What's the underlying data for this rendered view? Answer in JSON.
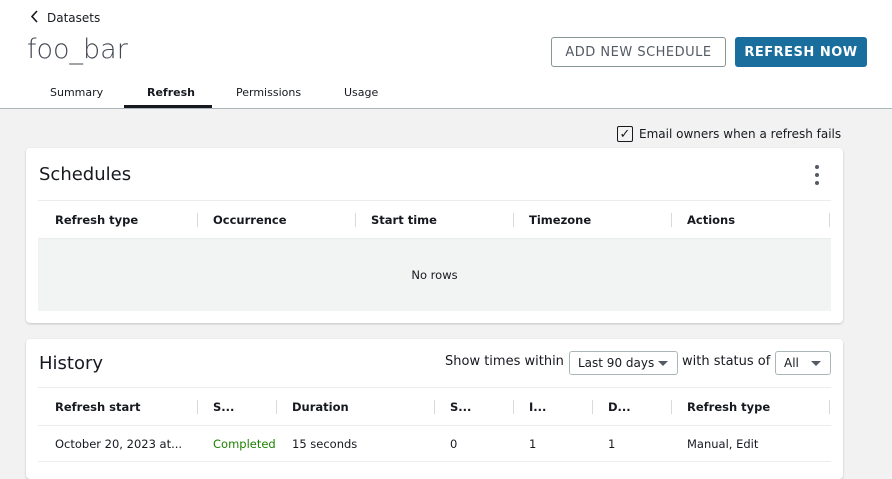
{
  "breadcrumb": {
    "label": "Datasets"
  },
  "title": "foo_bar",
  "buttons": {
    "add_schedule": "ADD NEW SCHEDULE",
    "refresh_now": "REFRESH NOW"
  },
  "tabs": [
    {
      "label": "Summary"
    },
    {
      "label": "Refresh",
      "active": true
    },
    {
      "label": "Permissions"
    },
    {
      "label": "Usage"
    }
  ],
  "email_option": {
    "label": "Email owners when a refresh fails",
    "checked": true
  },
  "schedules": {
    "title": "Schedules",
    "columns": [
      "Refresh type",
      "Occurrence",
      "Start time",
      "Timezone",
      "Actions"
    ],
    "empty_text": "No rows"
  },
  "history": {
    "title": "History",
    "filter_prefix": "Show times within",
    "range": "Last 90 days",
    "status_prefix": "with status of",
    "status": "All",
    "columns": [
      "Refresh start",
      "S...",
      "Duration",
      "S...",
      "I...",
      "D...",
      "Refresh type"
    ],
    "rows": [
      [
        "October 20, 2023 at...",
        "Completed",
        "15 seconds",
        "0",
        "1",
        "1",
        "Manual, Edit"
      ]
    ]
  },
  "colors": {
    "primary": "#1a6e9e",
    "success": "#1d8102"
  }
}
